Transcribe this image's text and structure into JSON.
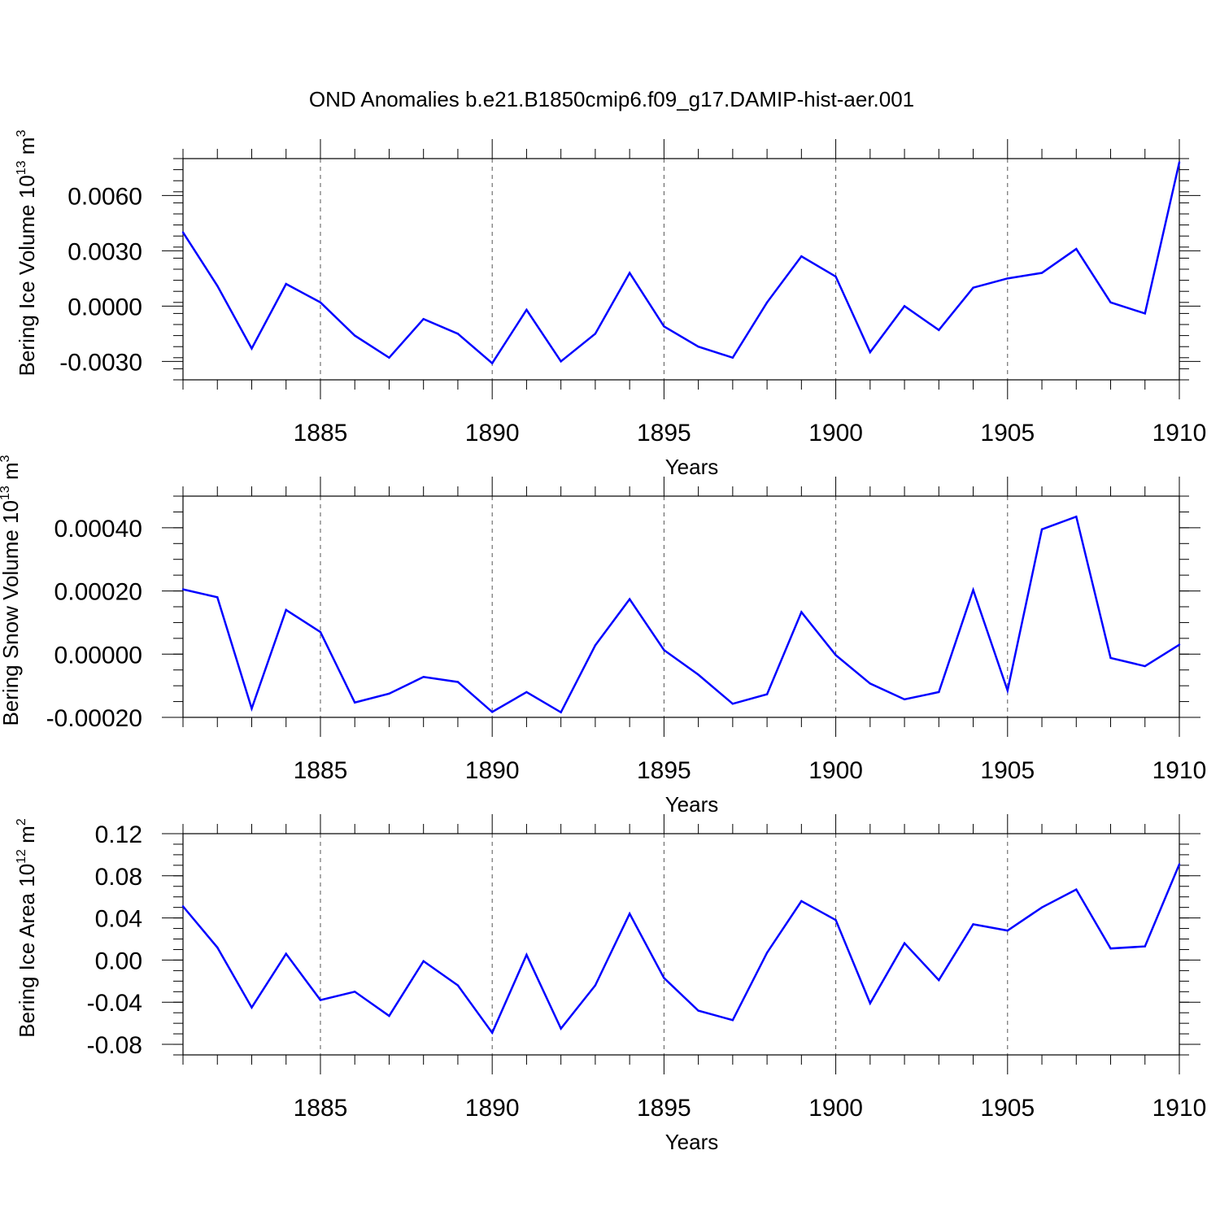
{
  "title": "OND Anomalies b.e21.B1850cmip6.f09_g17.DAMIP-hist-aer.001",
  "line_color": "#0000ff",
  "chart_data": [
    {
      "type": "line",
      "name": "bering-ice-volume",
      "ylabel": "Bering Ice Volume",
      "yunit_base": "10",
      "yunit_exp": "13",
      "yunit_after": " m",
      "yunit_sup": "3",
      "xlabel": "Years",
      "xlim": [
        1881,
        1910
      ],
      "ylim": [
        -0.004,
        0.008
      ],
      "yticks": [
        -0.003,
        0.0,
        0.003,
        0.006
      ],
      "ytick_labels": [
        "-0.0030",
        "0.0000",
        "0.0030",
        "0.0060"
      ],
      "yminor_step": 0.0006,
      "xticks": [
        1885,
        1890,
        1895,
        1900,
        1905,
        1910
      ],
      "xtick_labels": [
        "1885",
        "1890",
        "1895",
        "1900",
        "1905",
        "1910"
      ],
      "grid": "vertical dashed at major x ticks",
      "x": [
        1881,
        1882,
        1883,
        1884,
        1885,
        1886,
        1887,
        1888,
        1889,
        1890,
        1891,
        1892,
        1893,
        1894,
        1895,
        1896,
        1897,
        1898,
        1899,
        1900,
        1901,
        1902,
        1903,
        1904,
        1905,
        1906,
        1907,
        1908,
        1909,
        1910
      ],
      "values": [
        0.004,
        0.0011,
        -0.0023,
        0.0012,
        0.0002,
        -0.0016,
        -0.0028,
        -0.0007,
        -0.0015,
        -0.0031,
        -0.0002,
        -0.003,
        -0.0015,
        0.0018,
        -0.0011,
        -0.0022,
        -0.0028,
        0.0002,
        0.0027,
        0.0016,
        -0.0025,
        0.0,
        -0.0013,
        0.001,
        0.0015,
        0.0018,
        0.0031,
        0.0002,
        -0.0004,
        0.0078
      ]
    },
    {
      "type": "line",
      "name": "bering-snow-volume",
      "ylabel": "Bering Snow Volume",
      "yunit_base": "10",
      "yunit_exp": "13",
      "yunit_after": " m",
      "yunit_sup": "3",
      "xlabel": "Years",
      "xlim": [
        1881,
        1910
      ],
      "ylim": [
        -0.0002,
        0.0005
      ],
      "yticks": [
        -0.0002,
        0.0,
        0.0002,
        0.0004
      ],
      "ytick_labels": [
        "-0.00020",
        "0.00000",
        "0.00020",
        "0.00040"
      ],
      "yminor_step": 5e-05,
      "xticks": [
        1885,
        1890,
        1895,
        1900,
        1905,
        1910
      ],
      "xtick_labels": [
        "1885",
        "1890",
        "1895",
        "1900",
        "1905",
        "1910"
      ],
      "grid": "vertical dashed at major x ticks",
      "x": [
        1881,
        1882,
        1883,
        1884,
        1885,
        1886,
        1887,
        1888,
        1889,
        1890,
        1891,
        1892,
        1893,
        1894,
        1895,
        1896,
        1897,
        1898,
        1899,
        1900,
        1901,
        1902,
        1903,
        1904,
        1905,
        1906,
        1907,
        1908,
        1909,
        1910
      ],
      "values": [
        0.000205,
        0.00018,
        -0.000172,
        0.00014,
        7e-05,
        -0.000153,
        -0.000125,
        -7.2e-05,
        -8.8e-05,
        -0.000183,
        -0.00012,
        -0.000184,
        2.8e-05,
        0.000174,
        1.3e-05,
        -6.5e-05,
        -0.000157,
        -0.000127,
        0.000133,
        -3e-06,
        -9.3e-05,
        -0.000143,
        -0.00012,
        0.000203,
        -0.000115,
        0.000395,
        0.000435,
        -1.2e-05,
        -3.8e-05,
        3e-05
      ]
    },
    {
      "type": "line",
      "name": "bering-ice-area",
      "ylabel": "Bering Ice Area",
      "yunit_base": "10",
      "yunit_exp": "12",
      "yunit_after": " m",
      "yunit_sup": "2",
      "xlabel": "Years",
      "xlim": [
        1881,
        1910
      ],
      "ylim": [
        -0.09,
        0.12
      ],
      "yticks": [
        -0.08,
        -0.04,
        0.0,
        0.04,
        0.08,
        0.12
      ],
      "ytick_labels": [
        "-0.08",
        "-0.04",
        "0.00",
        "0.04",
        "0.08",
        "0.12"
      ],
      "yminor_step": 0.01,
      "xticks": [
        1885,
        1890,
        1895,
        1900,
        1905,
        1910
      ],
      "xtick_labels": [
        "1885",
        "1890",
        "1895",
        "1900",
        "1905",
        "1910"
      ],
      "grid": "vertical dashed at major x ticks",
      "x": [
        1881,
        1882,
        1883,
        1884,
        1885,
        1886,
        1887,
        1888,
        1889,
        1890,
        1891,
        1892,
        1893,
        1894,
        1895,
        1896,
        1897,
        1898,
        1899,
        1900,
        1901,
        1902,
        1903,
        1904,
        1905,
        1906,
        1907,
        1908,
        1909,
        1910
      ],
      "values": [
        0.051,
        0.012,
        -0.045,
        0.006,
        -0.038,
        -0.03,
        -0.053,
        -0.001,
        -0.024,
        -0.069,
        0.005,
        -0.065,
        -0.024,
        0.044,
        -0.017,
        -0.048,
        -0.057,
        0.007,
        0.056,
        0.038,
        -0.041,
        0.016,
        -0.019,
        0.034,
        0.028,
        0.05,
        0.067,
        0.011,
        0.013,
        0.091
      ]
    }
  ]
}
